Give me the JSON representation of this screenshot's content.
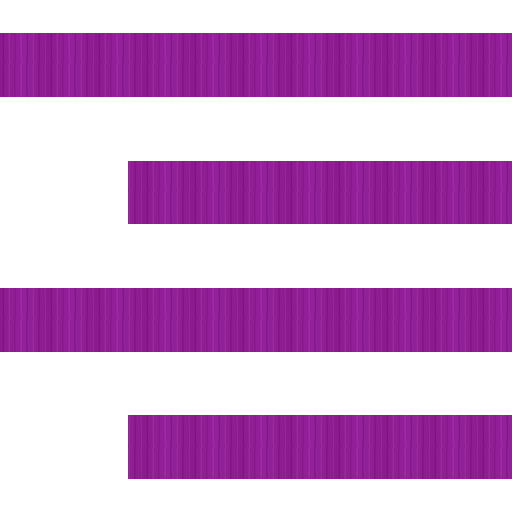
{
  "icon": {
    "name": "align-right-icon",
    "description_name": "text-align-right",
    "lines": [
      {
        "id": "line-1",
        "kind": "full"
      },
      {
        "id": "line-2",
        "kind": "short"
      },
      {
        "id": "line-3",
        "kind": "full"
      },
      {
        "id": "line-4",
        "kind": "short"
      }
    ],
    "colors": {
      "background": "#ffffff",
      "bar_base": "#8c1a8f",
      "bar_dark": "#6e0f73",
      "bar_light": "#a63aa8"
    }
  }
}
